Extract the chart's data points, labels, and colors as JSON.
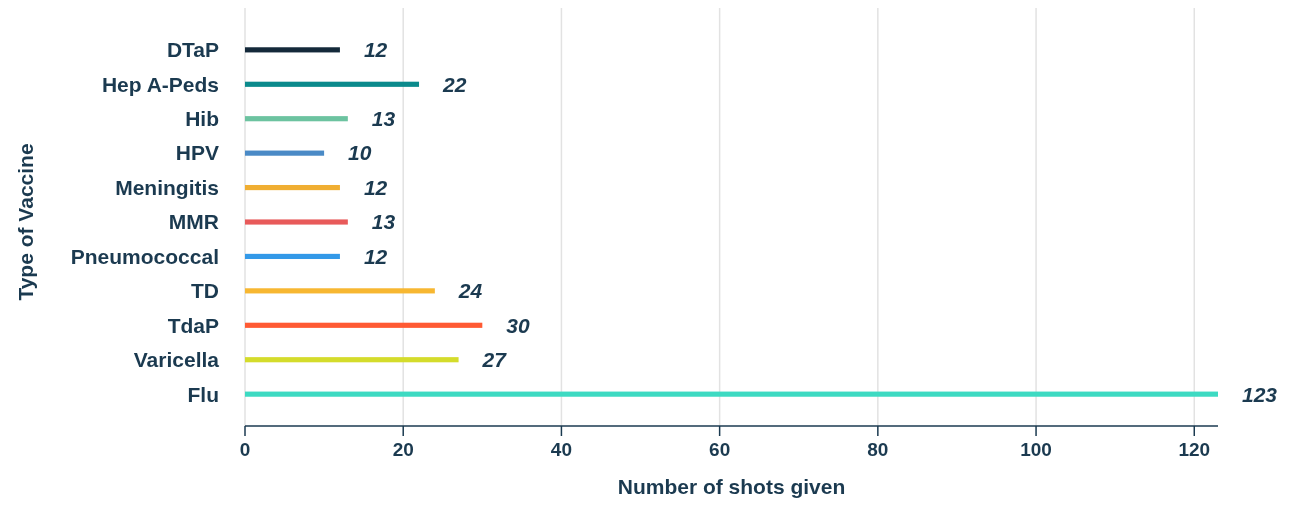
{
  "chart_data": {
    "type": "bar",
    "orientation": "horizontal",
    "xlabel": "Number of shots given",
    "ylabel": "Type of Vaccine",
    "categories": [
      "DTaP",
      "Hep A-Peds",
      "Hib",
      "HPV",
      "Meningitis",
      "MMR",
      "Pneumococcal",
      "TD",
      "TdaP",
      "Varicella",
      "Flu"
    ],
    "values": [
      12,
      22,
      13,
      10,
      12,
      13,
      12,
      24,
      30,
      27,
      123
    ],
    "colors": [
      "#14293a",
      "#0b8a8c",
      "#6cc3a0",
      "#4a8ac6",
      "#f0ae32",
      "#e85a5a",
      "#3399e8",
      "#f7b731",
      "#ff5a33",
      "#d4dc2b",
      "#3ddac2"
    ],
    "xlim": [
      0,
      123
    ],
    "xticks": [
      0,
      20,
      40,
      60,
      80,
      100,
      120
    ],
    "grid": "x",
    "data_labels": true
  }
}
